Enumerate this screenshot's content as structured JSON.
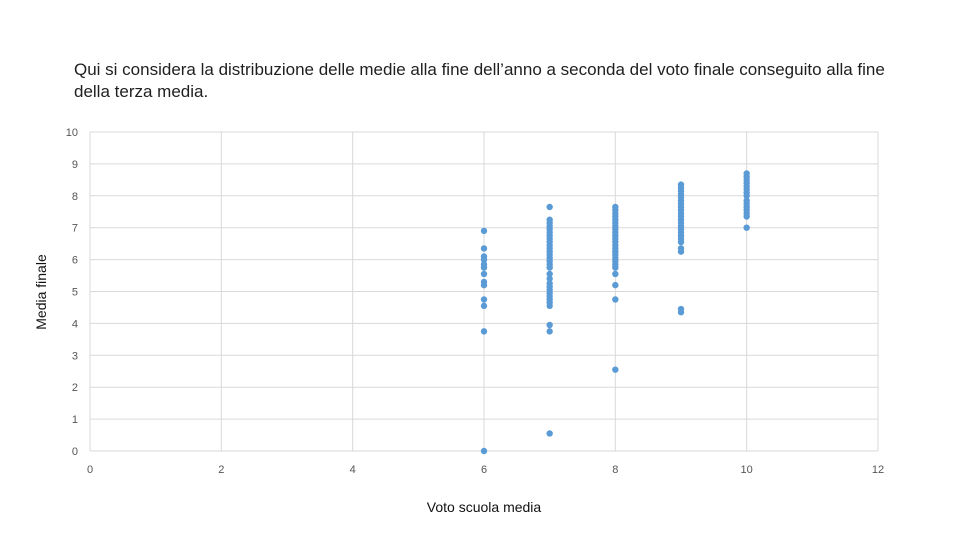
{
  "title": "Qui si considera la distribuzione delle medie alla fine dell’anno a seconda del voto finale conseguito alla fine della terza media.",
  "chart_data": {
    "type": "scatter",
    "xlabel": "Voto scuola media",
    "ylabel": "Media finale",
    "xlim": [
      0,
      12
    ],
    "ylim": [
      0,
      10
    ],
    "xticks": [
      0,
      2,
      4,
      6,
      8,
      10,
      12
    ],
    "yticks": [
      0,
      1,
      2,
      3,
      4,
      5,
      6,
      7,
      8,
      9,
      10
    ],
    "grid": true,
    "marker_color": "#5b9bd5",
    "points": [
      [
        6,
        0.0
      ],
      [
        6,
        3.75
      ],
      [
        6,
        4.55
      ],
      [
        6,
        4.75
      ],
      [
        6,
        5.2
      ],
      [
        6,
        5.3
      ],
      [
        6,
        5.55
      ],
      [
        6,
        5.75
      ],
      [
        6,
        5.85
      ],
      [
        6,
        6.0
      ],
      [
        6,
        6.1
      ],
      [
        6,
        6.35
      ],
      [
        6,
        6.9
      ],
      [
        7,
        0.55
      ],
      [
        7,
        3.75
      ],
      [
        7,
        3.95
      ],
      [
        7,
        4.55
      ],
      [
        7,
        4.65
      ],
      [
        7,
        4.75
      ],
      [
        7,
        4.85
      ],
      [
        7,
        4.95
      ],
      [
        7,
        5.05
      ],
      [
        7,
        5.15
      ],
      [
        7,
        5.25
      ],
      [
        7,
        5.4
      ],
      [
        7,
        5.55
      ],
      [
        7,
        5.75
      ],
      [
        7,
        5.85
      ],
      [
        7,
        5.95
      ],
      [
        7,
        6.05
      ],
      [
        7,
        6.15
      ],
      [
        7,
        6.25
      ],
      [
        7,
        6.35
      ],
      [
        7,
        6.45
      ],
      [
        7,
        6.55
      ],
      [
        7,
        6.65
      ],
      [
        7,
        6.75
      ],
      [
        7,
        6.85
      ],
      [
        7,
        6.95
      ],
      [
        7,
        7.05
      ],
      [
        7,
        7.15
      ],
      [
        7,
        7.25
      ],
      [
        7,
        7.65
      ],
      [
        8,
        2.55
      ],
      [
        8,
        4.75
      ],
      [
        8,
        5.2
      ],
      [
        8,
        5.55
      ],
      [
        8,
        5.75
      ],
      [
        8,
        5.85
      ],
      [
        8,
        5.95
      ],
      [
        8,
        6.05
      ],
      [
        8,
        6.15
      ],
      [
        8,
        6.25
      ],
      [
        8,
        6.35
      ],
      [
        8,
        6.45
      ],
      [
        8,
        6.55
      ],
      [
        8,
        6.65
      ],
      [
        8,
        6.75
      ],
      [
        8,
        6.85
      ],
      [
        8,
        6.95
      ],
      [
        8,
        7.05
      ],
      [
        8,
        7.15
      ],
      [
        8,
        7.25
      ],
      [
        8,
        7.35
      ],
      [
        8,
        7.45
      ],
      [
        8,
        7.55
      ],
      [
        8,
        7.65
      ],
      [
        9,
        4.35
      ],
      [
        9,
        4.45
      ],
      [
        9,
        6.25
      ],
      [
        9,
        6.35
      ],
      [
        9,
        6.55
      ],
      [
        9,
        6.65
      ],
      [
        9,
        6.75
      ],
      [
        9,
        6.85
      ],
      [
        9,
        6.95
      ],
      [
        9,
        7.05
      ],
      [
        9,
        7.15
      ],
      [
        9,
        7.25
      ],
      [
        9,
        7.35
      ],
      [
        9,
        7.45
      ],
      [
        9,
        7.55
      ],
      [
        9,
        7.65
      ],
      [
        9,
        7.75
      ],
      [
        9,
        7.85
      ],
      [
        9,
        7.95
      ],
      [
        9,
        8.05
      ],
      [
        9,
        8.15
      ],
      [
        9,
        8.25
      ],
      [
        9,
        8.35
      ],
      [
        10,
        7.0
      ],
      [
        10,
        7.35
      ],
      [
        10,
        7.45
      ],
      [
        10,
        7.55
      ],
      [
        10,
        7.65
      ],
      [
        10,
        7.75
      ],
      [
        10,
        7.85
      ],
      [
        10,
        8.0
      ],
      [
        10,
        8.1
      ],
      [
        10,
        8.2
      ],
      [
        10,
        8.3
      ],
      [
        10,
        8.4
      ],
      [
        10,
        8.5
      ],
      [
        10,
        8.6
      ],
      [
        10,
        8.7
      ]
    ]
  }
}
